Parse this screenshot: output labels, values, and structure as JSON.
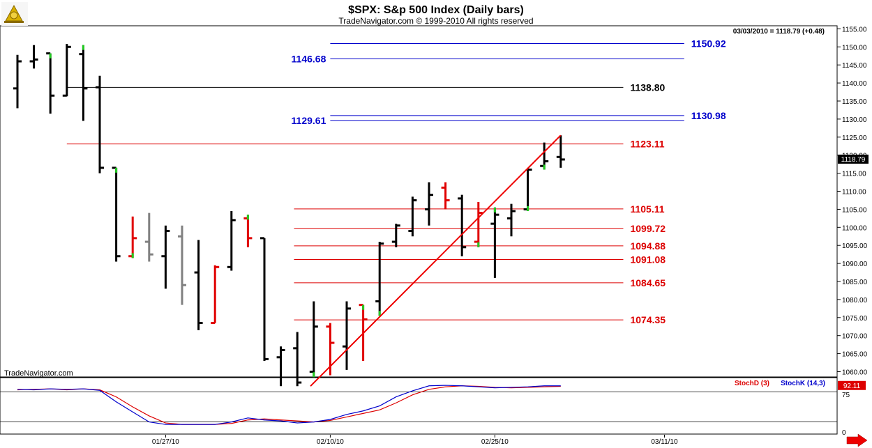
{
  "header": {
    "title": "$SPX:  S&p 500 Index  (Daily bars)",
    "subtitle": "TradeNavigator.com © 1999-2010 All rights reserved",
    "quote": "03/03/2010 = 1118.79 (+0.48)",
    "last_price_tag": "1118.79",
    "watermark": "TradeNavigator.com"
  },
  "colors": {
    "up_bar": "#000000",
    "down_bar": "#e00000",
    "neutral_bar": "#808080",
    "highlight_tick": "#22cc22",
    "blue_level": "#0000cc",
    "red_level": "#dd0000",
    "black_level": "#000000",
    "trend_line": "#ee0000",
    "stoch_d": "#dd0000",
    "stoch_k": "#0000cc",
    "price_tag_bg": "#000000",
    "stoch_tag_bg": "#dd0000"
  },
  "icons": {
    "logo": "sextant-icon",
    "scroll": "right-arrow-icon"
  },
  "chart_data": {
    "type": "ohlc",
    "ylim": [
      1056,
      1158
    ],
    "y_ticks": [
      1060,
      1065,
      1070,
      1075,
      1080,
      1085,
      1090,
      1095,
      1100,
      1105,
      1110,
      1115,
      1120,
      1125,
      1130,
      1135,
      1140,
      1145,
      1150,
      1155
    ],
    "y_tick_labels": [
      "1060.00",
      "1065.00",
      "1070.00",
      "1075.00",
      "1080.00",
      "1085.00",
      "1090.00",
      "1095.00",
      "1100.00",
      "1105.00",
      "1110.00",
      "1115.00",
      "1120.00",
      "1125.00",
      "1130.00",
      "1135.00",
      "1140.00",
      "1145.00",
      "1150.00",
      "1155.00"
    ],
    "x_labels": [
      "01/27/10",
      "02/10/10",
      "02/25/10",
      "03/11/10"
    ],
    "x_label_index": [
      9,
      19,
      29,
      39.3
    ],
    "bars": [
      {
        "o": 1138.5,
        "h": 1147.8,
        "l": 1133.0,
        "c": 1146.0,
        "color": "black"
      },
      {
        "o": 1146.0,
        "h": 1150.5,
        "l": 1144.0,
        "c": 1146.5,
        "color": "black"
      },
      {
        "o": 1148.2,
        "h": 1148.2,
        "l": 1131.5,
        "c": 1136.5,
        "color": "black",
        "mark": "high"
      },
      {
        "o": 1136.5,
        "h": 1150.8,
        "l": 1136.3,
        "c": 1150.0,
        "color": "black"
      },
      {
        "o": 1148.0,
        "h": 1150.5,
        "l": 1129.5,
        "c": 1138.5,
        "color": "black",
        "mark": "high"
      },
      {
        "o": 1138.8,
        "h": 1142.0,
        "l": 1115.0,
        "c": 1116.5,
        "color": "black"
      },
      {
        "o": 1116.5,
        "h": 1116.5,
        "l": 1090.5,
        "c": 1092.0,
        "color": "black",
        "mark": "high"
      },
      {
        "o": 1092.0,
        "h": 1103.0,
        "l": 1091.5,
        "c": 1097.0,
        "color": "red",
        "mark": "low"
      },
      {
        "o": 1096.0,
        "h": 1104.0,
        "l": 1090.5,
        "c": 1092.5,
        "color": "gray"
      },
      {
        "o": 1092.0,
        "h": 1100.5,
        "l": 1083.0,
        "c": 1099.0,
        "color": "black"
      },
      {
        "o": 1097.5,
        "h": 1100.5,
        "l": 1078.5,
        "c": 1084.0,
        "color": "gray"
      },
      {
        "o": 1087.5,
        "h": 1096.5,
        "l": 1071.5,
        "c": 1073.5,
        "color": "black"
      },
      {
        "o": 1073.5,
        "h": 1089.5,
        "l": 1073.5,
        "c": 1089.0,
        "color": "red"
      },
      {
        "o": 1089.0,
        "h": 1104.5,
        "l": 1088.0,
        "c": 1102.0,
        "color": "black"
      },
      {
        "o": 1102.5,
        "h": 1103.5,
        "l": 1094.5,
        "c": 1097.0,
        "color": "red",
        "mark": "high"
      },
      {
        "o": 1097.0,
        "h": 1097.0,
        "l": 1063.0,
        "c": 1063.5,
        "color": "black"
      },
      {
        "o": 1064.0,
        "h": 1067.0,
        "l": 1056.0,
        "c": 1066.0,
        "color": "black"
      },
      {
        "o": 1066.5,
        "h": 1071.0,
        "l": 1056.0,
        "c": 1057.0,
        "color": "black"
      },
      {
        "o": 1060.0,
        "h": 1079.5,
        "l": 1058.5,
        "c": 1072.5,
        "color": "black",
        "mark": "low"
      },
      {
        "o": 1072.5,
        "h": 1073.5,
        "l": 1059.0,
        "c": 1068.0,
        "color": "red"
      },
      {
        "o": 1067.0,
        "h": 1079.5,
        "l": 1060.5,
        "c": 1077.5,
        "color": "black"
      },
      {
        "o": 1078.5,
        "h": 1078.5,
        "l": 1063.0,
        "c": 1074.5,
        "color": "red",
        "mark": "high"
      },
      {
        "o": 1079.5,
        "h": 1096.0,
        "l": 1075.5,
        "c": 1095.5,
        "color": "black",
        "mark": "low"
      },
      {
        "o": 1096.0,
        "h": 1101.0,
        "l": 1094.5,
        "c": 1100.5,
        "color": "black"
      },
      {
        "o": 1099.0,
        "h": 1108.5,
        "l": 1097.5,
        "c": 1107.5,
        "color": "black"
      },
      {
        "o": 1105.0,
        "h": 1112.5,
        "l": 1100.5,
        "c": 1109.0,
        "color": "black"
      },
      {
        "o": 1111.0,
        "h": 1112.5,
        "l": 1105.0,
        "c": 1107.5,
        "color": "red"
      },
      {
        "o": 1108.0,
        "h": 1109.0,
        "l": 1092.0,
        "c": 1094.5,
        "color": "black"
      },
      {
        "o": 1096.0,
        "h": 1107.0,
        "l": 1094.5,
        "c": 1104.0,
        "color": "red",
        "mark": "low"
      },
      {
        "o": 1101.0,
        "h": 1105.5,
        "l": 1086.0,
        "c": 1103.5,
        "color": "black",
        "mark": "high"
      },
      {
        "o": 1102.5,
        "h": 1106.5,
        "l": 1097.5,
        "c": 1104.5,
        "color": "black"
      },
      {
        "o": 1105.0,
        "h": 1116.0,
        "l": 1104.5,
        "c": 1116.0,
        "color": "black",
        "mark": "low"
      },
      {
        "o": 1117.0,
        "h": 1123.5,
        "l": 1116.0,
        "c": 1118.3,
        "color": "black",
        "mark": "low"
      },
      {
        "o": 1119.5,
        "h": 1125.5,
        "l": 1116.5,
        "c": 1118.8,
        "color": "black"
      }
    ],
    "levels": [
      {
        "value": 1150.92,
        "label": "1150.92",
        "color": "blue",
        "from": 19.0,
        "to": 40.5,
        "label_side": "right"
      },
      {
        "value": 1146.68,
        "label": "1146.68",
        "color": "blue",
        "from": 19.0,
        "to": 40.5,
        "label_side": "left"
      },
      {
        "value": 1138.8,
        "label": "1138.80",
        "color": "black",
        "from": 3.0,
        "to": 36.8,
        "label_side": "right"
      },
      {
        "value": 1130.98,
        "label": "1130.98",
        "color": "blue",
        "from": 19.0,
        "to": 40.5,
        "label_side": "right"
      },
      {
        "value": 1129.61,
        "label": "1129.61",
        "color": "blue",
        "from": 19.0,
        "to": 40.5,
        "label_side": "left"
      },
      {
        "value": 1123.11,
        "label": "1123.11",
        "color": "red",
        "from": 3.0,
        "to": 36.8,
        "label_side": "right"
      },
      {
        "value": 1105.11,
        "label": "1105.11",
        "color": "red",
        "from": 16.8,
        "to": 36.8,
        "label_side": "right"
      },
      {
        "value": 1099.72,
        "label": "1099.72",
        "color": "red",
        "from": 16.8,
        "to": 36.8,
        "label_side": "right"
      },
      {
        "value": 1094.88,
        "label": "1094.88",
        "color": "red",
        "from": 16.8,
        "to": 36.8,
        "label_side": "right"
      },
      {
        "value": 1091.08,
        "label": "1091.08",
        "color": "red",
        "from": 16.8,
        "to": 36.8,
        "label_side": "right"
      },
      {
        "value": 1084.65,
        "label": "1084.65",
        "color": "red",
        "from": 16.8,
        "to": 36.8,
        "label_side": "right"
      },
      {
        "value": 1074.35,
        "label": "1074.35",
        "color": "red",
        "from": 16.8,
        "to": 36.8,
        "label_side": "right"
      }
    ],
    "trend_line": {
      "x1": 17.8,
      "y1": 1056.0,
      "x2": 33.0,
      "y2": 1125.5
    },
    "stoch": {
      "legend": [
        "StochD (3)",
        "StochK (14,3)"
      ],
      "ylim": [
        0,
        100
      ],
      "y_ticks": [
        0,
        75
      ],
      "y_tick_labels": [
        "0",
        "75"
      ],
      "ref_lines": [
        80,
        20
      ],
      "last_value_tag": "92.11",
      "k": [
        85,
        84,
        86,
        85,
        86,
        83,
        60,
        40,
        20,
        15,
        15,
        15,
        15,
        20,
        28,
        24,
        22,
        18,
        20,
        25,
        35,
        42,
        52,
        70,
        82,
        92,
        93,
        92,
        90,
        88,
        89,
        90,
        92,
        92
      ],
      "d": [
        84,
        85,
        86,
        84,
        86,
        84,
        70,
        50,
        32,
        18,
        15,
        15,
        15,
        17,
        24,
        26,
        24,
        22,
        20,
        23,
        30,
        37,
        44,
        58,
        74,
        85,
        90,
        92,
        91,
        89,
        88,
        89,
        90,
        91
      ]
    }
  }
}
